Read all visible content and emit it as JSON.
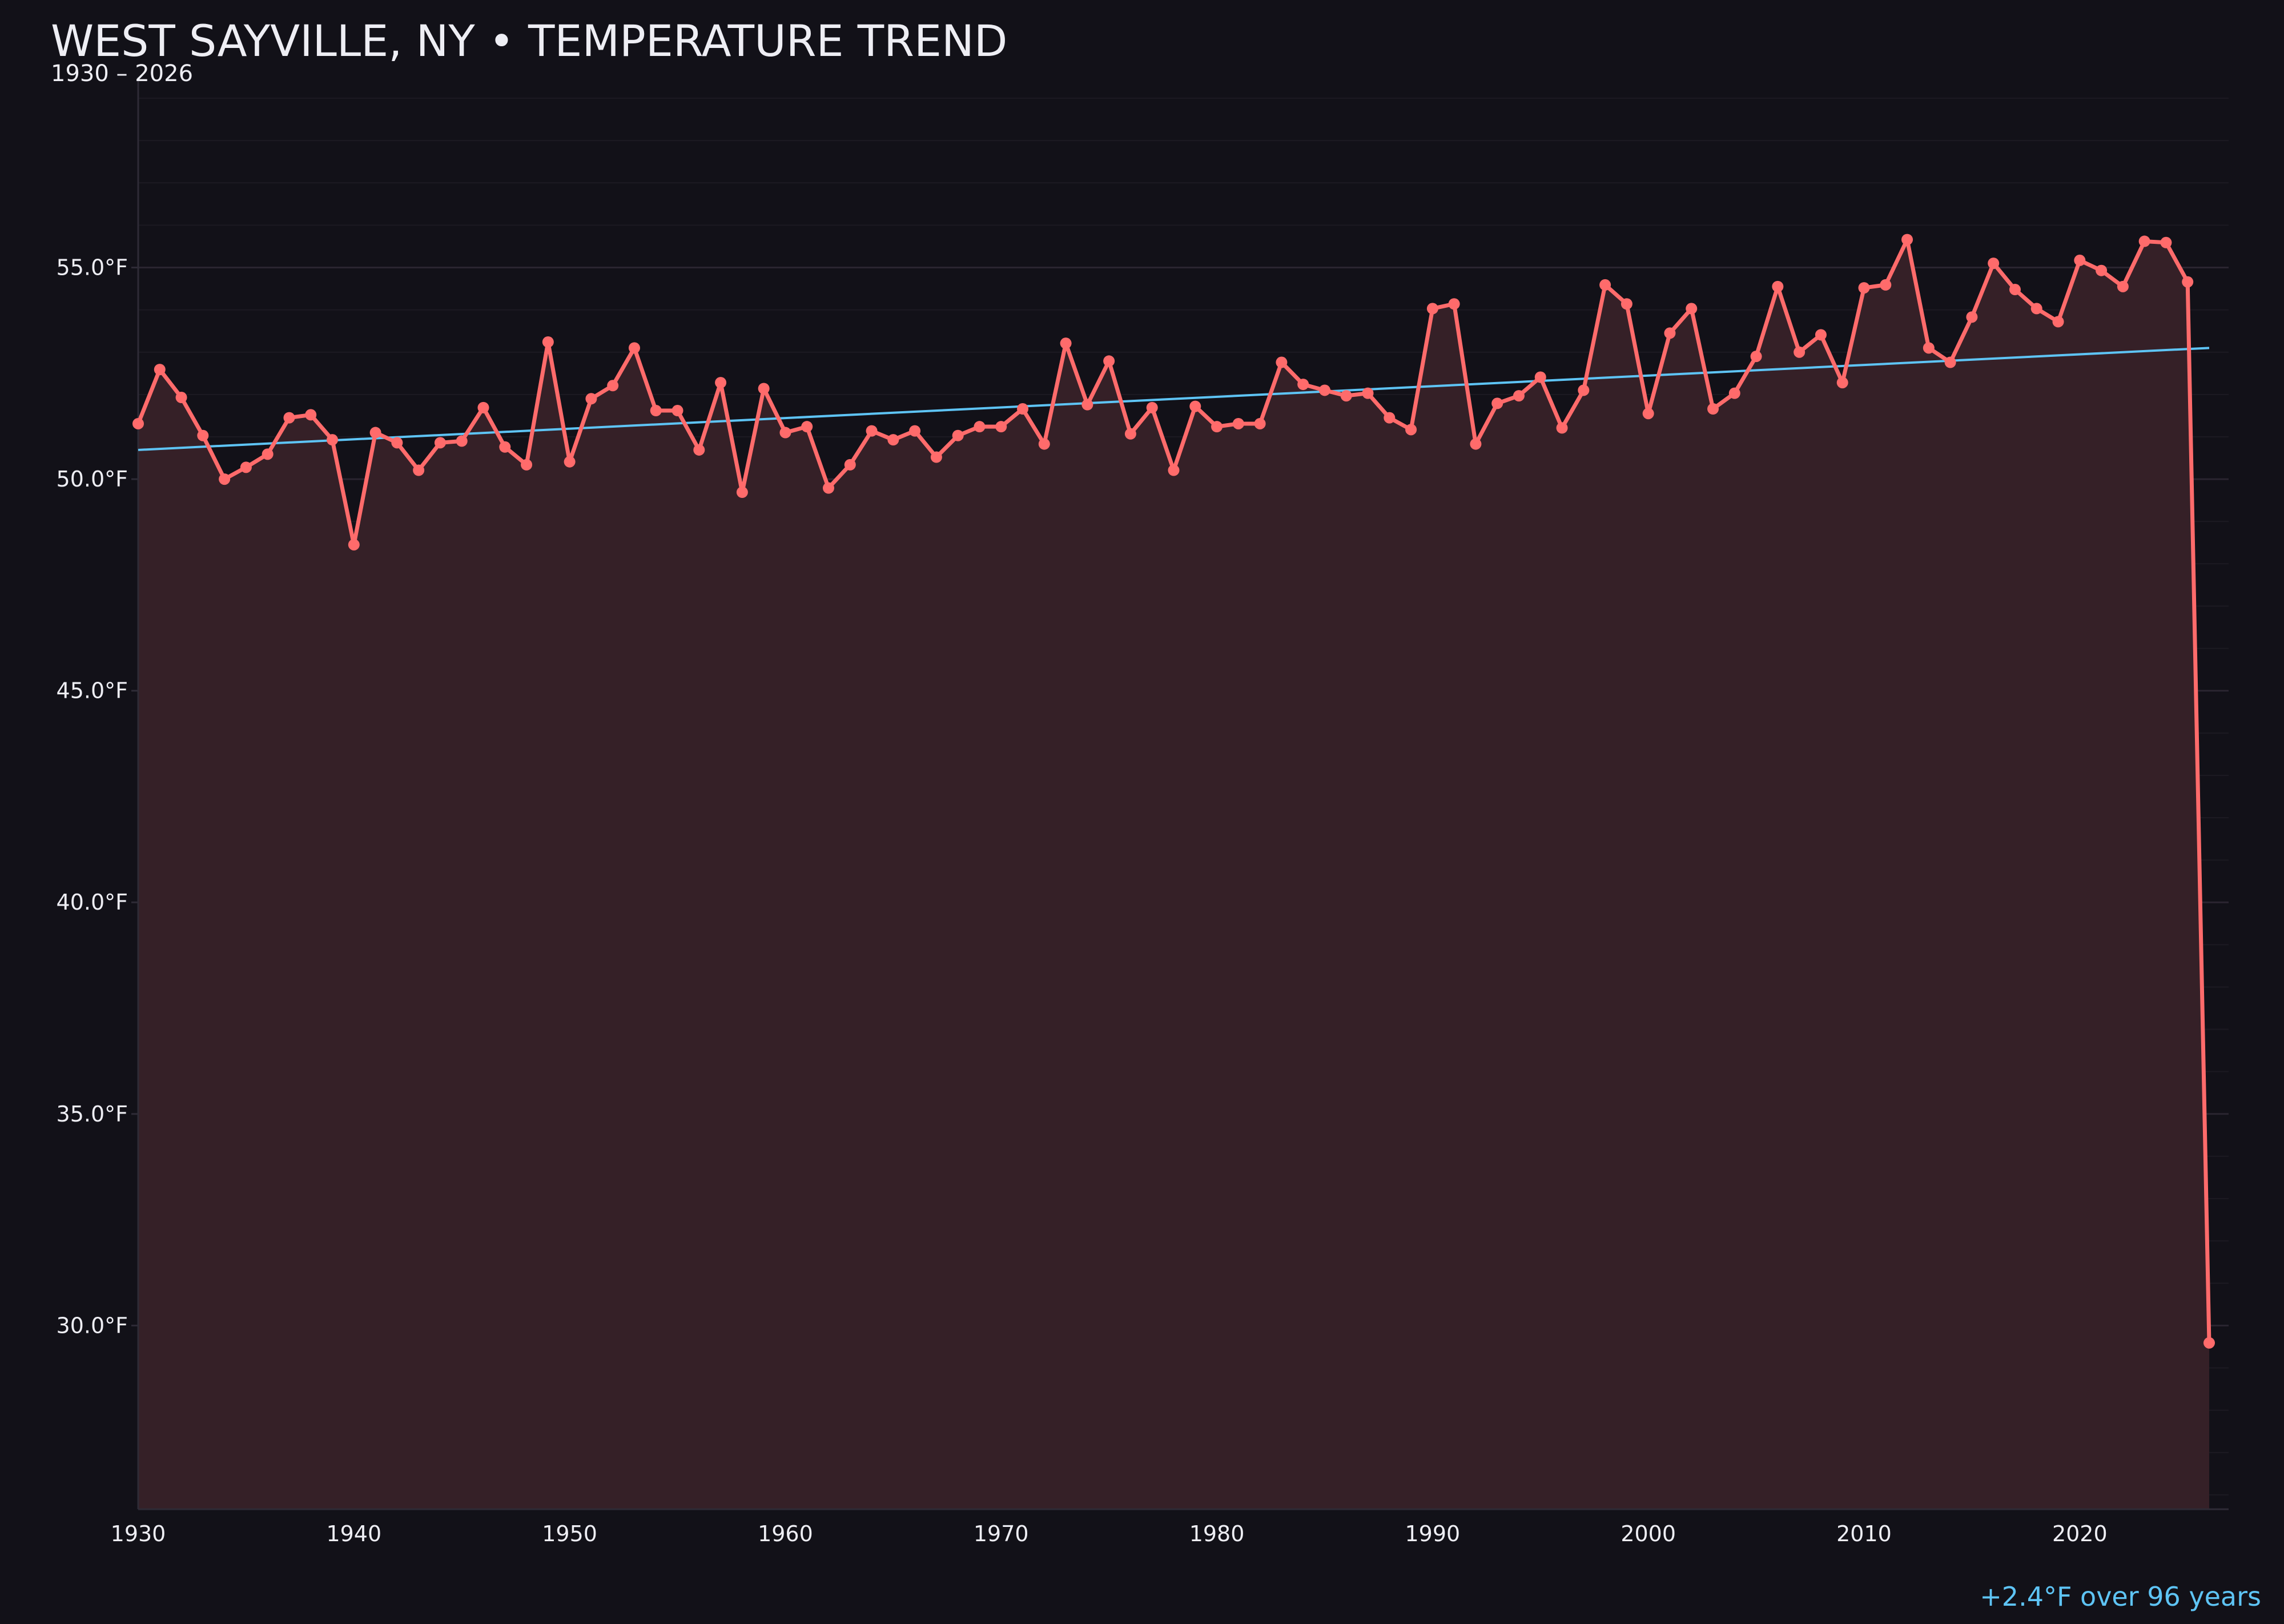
{
  "title": "WEST SAYVILLE, NY • TEMPERATURE TREND",
  "subtitle": "1930 – 2026",
  "footer_note": "+2.4°F over 96 years",
  "colors": {
    "background": "#121118",
    "line": "#ff6b6b",
    "fill": "#352027",
    "trend": "#5ec4f5",
    "text": "#eeeef4",
    "grid": "#2a2530"
  },
  "chart_data": {
    "type": "line",
    "title": "WEST SAYVILLE, NY • TEMPERATURE TREND",
    "subtitle": "1930 – 2026",
    "xlabel": "",
    "ylabel": "",
    "xlim": [
      1930,
      2026.9
    ],
    "ylim": [
      25.66,
      59.5
    ],
    "grid": true,
    "y_ticks": [
      30,
      35,
      40,
      45,
      50,
      55
    ],
    "y_tick_labels": [
      "30.0°F",
      "35.0°F",
      "40.0°F",
      "45.0°F",
      "50.0°F",
      "55.0°F"
    ],
    "x_ticks": [
      1930,
      1940,
      1950,
      1960,
      1970,
      1980,
      1990,
      2000,
      2010,
      2020
    ],
    "x_tick_labels": [
      "1930",
      "1940",
      "1950",
      "1960",
      "1970",
      "1980",
      "1990",
      "2000",
      "2010",
      "2020"
    ],
    "x": [
      1930,
      1931,
      1932,
      1933,
      1934,
      1935,
      1936,
      1937,
      1938,
      1939,
      1940,
      1941,
      1942,
      1943,
      1944,
      1945,
      1946,
      1947,
      1948,
      1949,
      1950,
      1951,
      1952,
      1953,
      1954,
      1955,
      1956,
      1957,
      1958,
      1959,
      1960,
      1961,
      1962,
      1963,
      1964,
      1965,
      1966,
      1967,
      1968,
      1969,
      1970,
      1971,
      1972,
      1973,
      1974,
      1975,
      1976,
      1977,
      1978,
      1979,
      1980,
      1981,
      1982,
      1983,
      1984,
      1985,
      1986,
      1987,
      1988,
      1989,
      1990,
      1991,
      1992,
      1993,
      1994,
      1995,
      1996,
      1997,
      1998,
      1999,
      2000,
      2001,
      2002,
      2003,
      2004,
      2005,
      2006,
      2007,
      2008,
      2009,
      2010,
      2011,
      2012,
      2013,
      2014,
      2015,
      2016,
      2017,
      2018,
      2019,
      2020,
      2021,
      2022,
      2023,
      2024,
      2025,
      2026
    ],
    "series": [
      {
        "values": [
          51.31,
          52.59,
          51.93,
          51.03,
          50.0,
          50.28,
          50.59,
          51.45,
          51.52,
          50.93,
          48.45,
          51.1,
          50.86,
          50.21,
          50.86,
          50.9,
          51.69,
          50.76,
          50.34,
          53.24,
          50.41,
          51.9,
          52.21,
          53.1,
          51.62,
          51.62,
          50.69,
          52.28,
          49.69,
          52.14,
          51.1,
          51.24,
          49.79,
          50.34,
          51.14,
          50.93,
          51.14,
          50.52,
          51.03,
          51.24,
          51.24,
          51.66,
          50.83,
          53.21,
          51.76,
          52.79,
          51.07,
          51.69,
          50.21,
          51.72,
          51.24,
          51.31,
          51.31,
          52.76,
          52.24,
          52.1,
          51.97,
          52.03,
          51.45,
          51.17,
          54.03,
          54.14,
          50.83,
          51.79,
          51.97,
          52.41,
          51.21,
          52.1,
          54.59,
          54.14,
          51.55,
          53.45,
          54.03,
          51.66,
          52.03,
          52.9,
          54.55,
          53.0,
          53.41,
          52.28,
          54.52,
          54.59,
          55.66,
          53.1,
          52.76,
          53.83,
          55.1,
          54.48,
          54.03,
          53.72,
          55.17,
          54.93,
          54.55,
          55.62,
          55.59,
          54.66,
          29.59
        ]
      }
    ],
    "trend_line": {
      "x": [
        1930,
        2026
      ],
      "y": [
        50.69,
        53.1
      ]
    }
  }
}
